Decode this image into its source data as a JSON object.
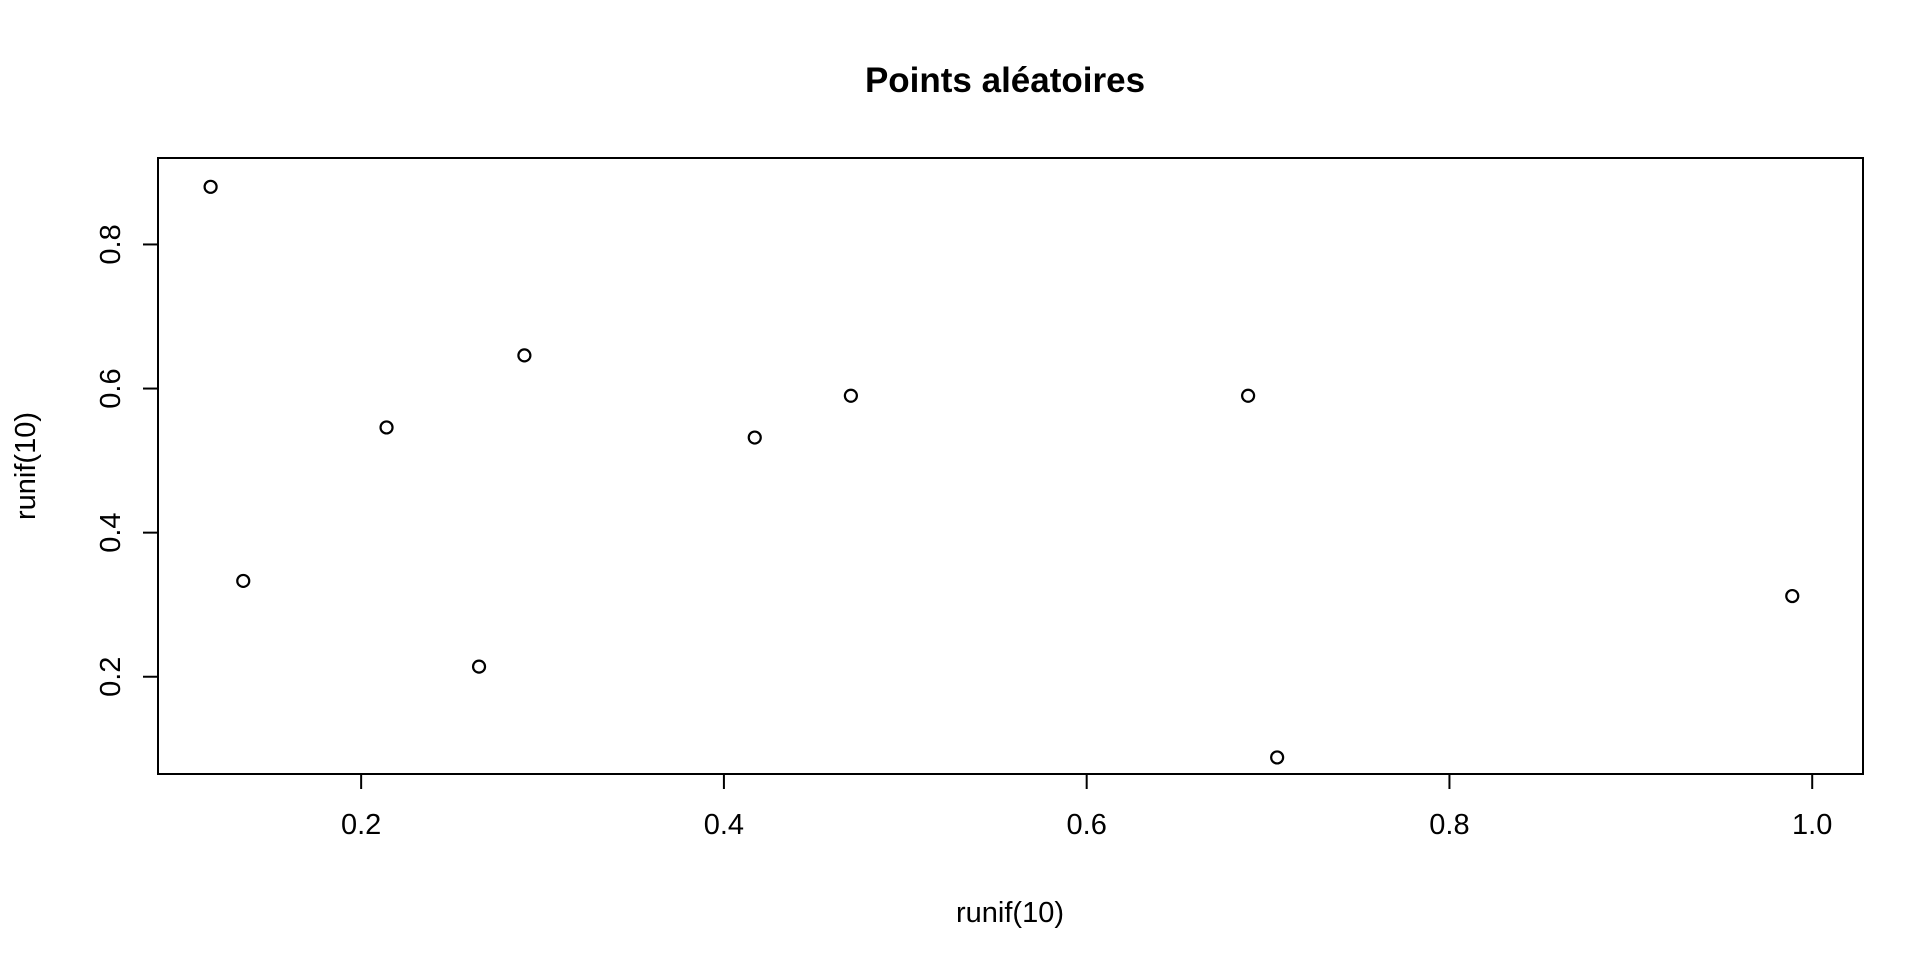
{
  "chart_data": {
    "type": "scatter",
    "title": "Points aléatoires",
    "xlabel": "runif(10)",
    "ylabel": "runif(10)",
    "xlim": [
      0.088,
      1.028
    ],
    "ylim": [
      0.065,
      0.92
    ],
    "x_ticks": [
      0.2,
      0.4,
      0.6,
      0.8,
      1.0
    ],
    "x_tick_labels": [
      "0.2",
      "0.4",
      "0.6",
      "0.8",
      "1.0"
    ],
    "y_ticks": [
      0.2,
      0.4,
      0.6,
      0.8
    ],
    "y_tick_labels": [
      "0.2",
      "0.4",
      "0.6",
      "0.8"
    ],
    "grid": false,
    "marker": "open-circle",
    "color": "#000000",
    "points": [
      {
        "x": 0.117,
        "y": 0.88
      },
      {
        "x": 0.135,
        "y": 0.333
      },
      {
        "x": 0.214,
        "y": 0.546
      },
      {
        "x": 0.265,
        "y": 0.214
      },
      {
        "x": 0.29,
        "y": 0.646
      },
      {
        "x": 0.417,
        "y": 0.532
      },
      {
        "x": 0.47,
        "y": 0.59
      },
      {
        "x": 0.689,
        "y": 0.59
      },
      {
        "x": 0.705,
        "y": 0.088
      },
      {
        "x": 0.989,
        "y": 0.312
      }
    ]
  }
}
